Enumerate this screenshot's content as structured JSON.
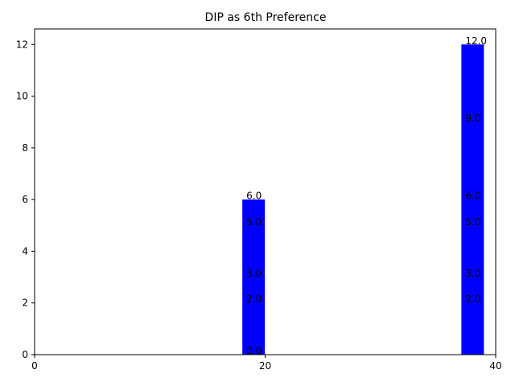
{
  "chart_data": {
    "type": "bar",
    "title": "DIP as 6th Preference",
    "xlabel": "",
    "ylabel": "",
    "xlim": [
      0,
      40
    ],
    "ylim": [
      0,
      12.6
    ],
    "xticks": [
      0,
      20,
      40
    ],
    "yticks": [
      0,
      2,
      4,
      6,
      8,
      10,
      12
    ],
    "bar_color": "#0000ff",
    "grid": false,
    "bars": [
      {
        "x": 19,
        "value": 6.0
      },
      {
        "x": 38,
        "value": 12.0
      }
    ],
    "data_labels": [
      {
        "x": 19,
        "y": 0.0,
        "text": "0.0"
      },
      {
        "x": 19,
        "y": 2.0,
        "text": "2.0"
      },
      {
        "x": 19,
        "y": 3.0,
        "text": "3.0"
      },
      {
        "x": 19,
        "y": 5.0,
        "text": "5.0"
      },
      {
        "x": 19,
        "y": 6.0,
        "text": "6.0"
      },
      {
        "x": 38,
        "y": 2.0,
        "text": "2.0"
      },
      {
        "x": 38,
        "y": 3.0,
        "text": "3.0"
      },
      {
        "x": 38,
        "y": 5.0,
        "text": "5.0"
      },
      {
        "x": 38,
        "y": 6.0,
        "text": "6.0"
      },
      {
        "x": 38,
        "y": 9.0,
        "text": "9.0"
      },
      {
        "x": 38,
        "y": 12.0,
        "text": "12.0"
      }
    ]
  }
}
